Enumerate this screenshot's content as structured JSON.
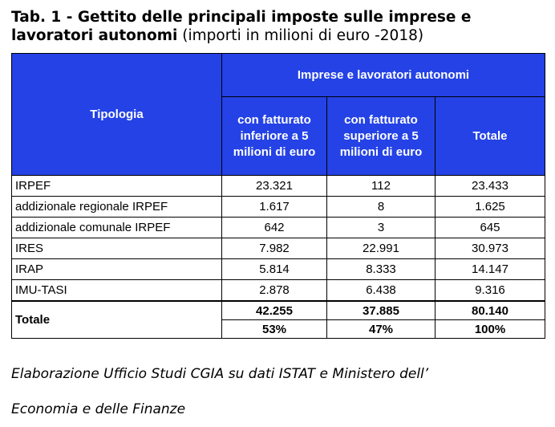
{
  "header": {
    "title_bold_1": "Tab. 1 - Gettito delle principali imposte sulle imprese e",
    "title_bold_2": "lavoratori autonomi",
    "title_normal": "(importi in milioni di euro -2018)"
  },
  "table": {
    "col_header": "Tipologia",
    "group_header": "Imprese e lavoratori autonomi",
    "sub_headers": [
      "con fatturato inferiore a 5 milioni di euro",
      "con fatturato superiore a 5 milioni di euro",
      "Totale"
    ],
    "rows": [
      {
        "label": "IRPEF",
        "values": [
          "23.321",
          "112",
          "23.433"
        ]
      },
      {
        "label": "addizionale regionale IRPEF",
        "values": [
          "1.617",
          "8",
          "1.625"
        ]
      },
      {
        "label": "addizionale comunale IRPEF",
        "values": [
          "642",
          "3",
          "645"
        ]
      },
      {
        "label": "IRES",
        "values": [
          "7.982",
          "22.991",
          "30.973"
        ]
      },
      {
        "label": "IRAP",
        "values": [
          "5.814",
          "8.333",
          "14.147"
        ]
      },
      {
        "label": "IMU-TASI",
        "values": [
          "2.878",
          "6.438",
          "9.316"
        ]
      }
    ],
    "total": {
      "label": "Totale",
      "values": [
        "42.255",
        "37.885",
        "80.140"
      ],
      "shares": [
        "53%",
        "47%",
        "100%"
      ]
    }
  },
  "footer": {
    "line1": "Elaborazione Ufficio Studi CGIA su dati ISTAT e Ministero dell’",
    "line2": "Economia e delle Finanze"
  }
}
